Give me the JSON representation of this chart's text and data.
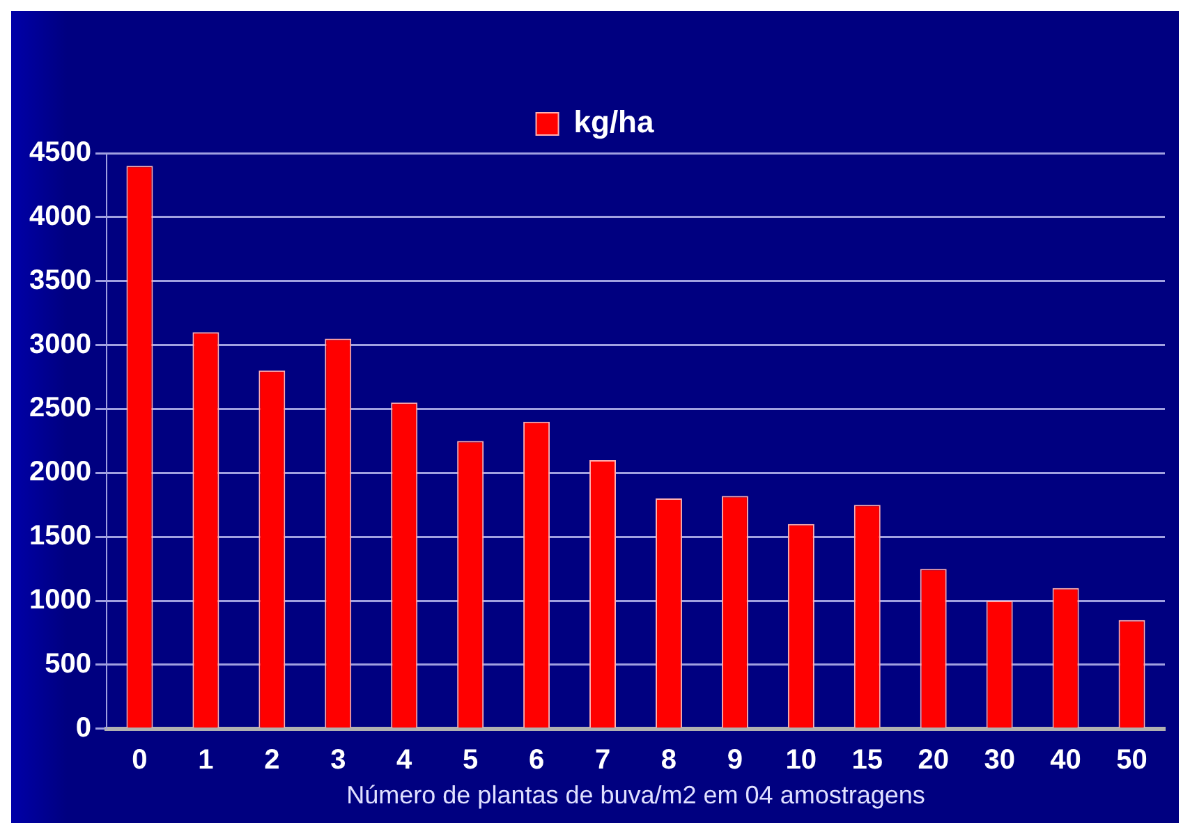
{
  "chart_data": {
    "type": "bar",
    "xlabel": "Número de plantas de buva/m2 em 04 amostragens",
    "categories": [
      "0",
      "1",
      "2",
      "3",
      "4",
      "5",
      "6",
      "7",
      "8",
      "9",
      "10",
      "15",
      "20",
      "30",
      "40",
      "50"
    ],
    "series": [
      {
        "name": "kg/ha",
        "color": "#ff0000",
        "values": [
          4400,
          3100,
          2800,
          3050,
          2550,
          2250,
          2400,
          2100,
          1800,
          1820,
          1600,
          1750,
          1250,
          1000,
          1100,
          850
        ]
      }
    ],
    "ylim": [
      0,
      4500
    ],
    "yticks": [
      0,
      500,
      1000,
      1500,
      2000,
      2500,
      3000,
      3500,
      4000,
      4500
    ],
    "grid": "y",
    "legend": "top"
  }
}
